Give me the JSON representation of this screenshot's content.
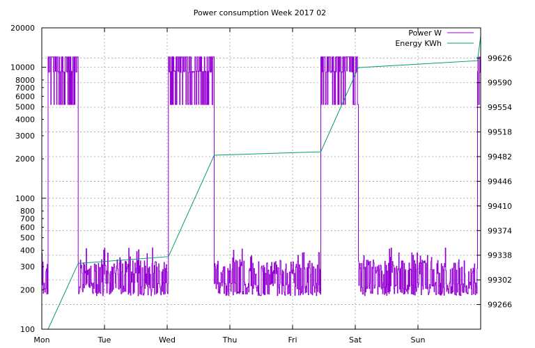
{
  "chart_data": {
    "type": "line",
    "title": "Power consumption Week 2017 02",
    "x_categories": [
      "Mon",
      "Tue",
      "Wed",
      "Thu",
      "Fri",
      "Sat",
      "Sun"
    ],
    "x_range_days": [
      0,
      7
    ],
    "y_left": {
      "scale": "log",
      "range": [
        100,
        20000
      ],
      "ticks": [
        100,
        200,
        300,
        400,
        500,
        600,
        700,
        800,
        1000,
        2000,
        3000,
        4000,
        5000,
        6000,
        7000,
        8000,
        10000,
        20000
      ],
      "tick_labels": [
        "100",
        "200",
        "300",
        "400",
        "500",
        "600",
        "700",
        "800",
        "1000",
        "2000",
        "3000",
        "4000",
        "5000",
        "6000",
        "7000",
        "8000",
        "10000",
        "20000"
      ],
      "major_grid": [
        100,
        1000,
        10000
      ]
    },
    "y_right": {
      "scale": "linear",
      "range": [
        99230,
        99670
      ],
      "ticks": [
        99266,
        99302,
        99338,
        99374,
        99410,
        99446,
        99482,
        99518,
        99554,
        99590,
        99626
      ],
      "tick_labels": [
        "99266",
        "99302",
        "99338",
        "99374",
        "99410",
        "99446",
        "99482",
        "99518",
        "99554",
        "99590",
        "99626"
      ]
    },
    "grid": true,
    "legend_position": "top-right",
    "colors": {
      "power": "#9400d3",
      "energy": "#009e73"
    },
    "series": [
      {
        "name": "Power W",
        "axis": "left",
        "segments": [
          {
            "x": [
              0.0,
              0.1
            ],
            "level": "low"
          },
          {
            "x": [
              0.1,
              0.58
            ],
            "level": "high"
          },
          {
            "x": [
              0.58,
              2.02
            ],
            "level": "low"
          },
          {
            "x": [
              2.02,
              2.75
            ],
            "level": "high"
          },
          {
            "x": [
              2.75,
              4.45
            ],
            "level": "low"
          },
          {
            "x": [
              4.45,
              5.05
            ],
            "level": "high"
          },
          {
            "x": [
              5.05,
              6.95
            ],
            "level": "low"
          },
          {
            "x": [
              6.95,
              7.0
            ],
            "level": "high"
          }
        ],
        "low_range": [
          180,
          420
        ],
        "high_range": [
          4500,
          12500
        ]
      },
      {
        "name": "Energy KWh",
        "axis": "right",
        "x": [
          0.0,
          0.1,
          0.58,
          2.02,
          2.75,
          4.45,
          5.05,
          6.95,
          7.0
        ],
        "values": [
          99230,
          99230,
          99326,
          99336,
          99484,
          99489,
          99612,
          99622,
          99658
        ]
      }
    ]
  }
}
